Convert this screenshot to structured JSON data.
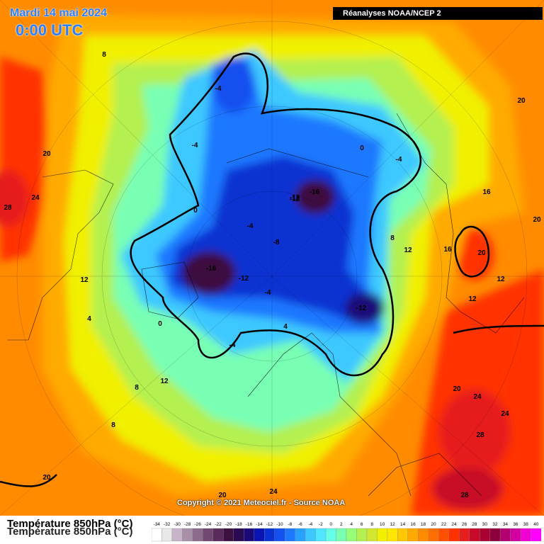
{
  "header": {
    "date": "Mardi 14 mai 2024",
    "time": "0:00 UTC",
    "source": "Réanalyses NOAA/NCEP 2"
  },
  "footer": {
    "copyright": "Copyright © 2021 Meteociel.fr - Source NOAA"
  },
  "legend": {
    "title": "Température 850hPa (°C)",
    "ticks": [
      "-34",
      "-32",
      "-30",
      "-28",
      "-26",
      "-24",
      "-22",
      "-20",
      "-18",
      "-16",
      "-14",
      "-12",
      "-10",
      "-8",
      "-6",
      "-4",
      "-2",
      "0",
      "2",
      "4",
      "6",
      "8",
      "10",
      "12",
      "14",
      "16",
      "18",
      "20",
      "22",
      "24",
      "26",
      "28",
      "30",
      "32",
      "34",
      "36",
      "38",
      "40"
    ],
    "colors": [
      "#ffffff",
      "#e8e8e8",
      "#c8b4c8",
      "#a890a8",
      "#8c6c8c",
      "#704870",
      "#5a2a5a",
      "#3c1040",
      "#2a0a50",
      "#1a0a78",
      "#0a14b4",
      "#0a32d2",
      "#1450f0",
      "#1e78ff",
      "#28a0ff",
      "#3cc8ff",
      "#50e6ff",
      "#64ffe6",
      "#78ffb4",
      "#96ff78",
      "#b4f050",
      "#d2e632",
      "#f0f000",
      "#ffe600",
      "#ffc800",
      "#ffaa00",
      "#ff8c00",
      "#ff6e00",
      "#ff5000",
      "#ff3200",
      "#e61e1e",
      "#c80a28",
      "#aa0032",
      "#8c003c",
      "#b4006e",
      "#d200a0",
      "#f000d2",
      "#ff00ff"
    ]
  },
  "map_labels": [
    {
      "text": "8"
    },
    {
      "text": "-4"
    },
    {
      "text": "-4"
    },
    {
      "text": "20"
    },
    {
      "text": "24"
    },
    {
      "text": "28"
    },
    {
      "text": "0"
    },
    {
      "text": "-4"
    },
    {
      "text": "-8"
    },
    {
      "text": "-12"
    },
    {
      "text": "-16"
    },
    {
      "text": "-12"
    },
    {
      "text": "-16"
    },
    {
      "text": "-12"
    },
    {
      "text": "-4"
    },
    {
      "text": "12"
    },
    {
      "text": "4"
    },
    {
      "text": "0"
    },
    {
      "text": "4"
    },
    {
      "text": "-4"
    },
    {
      "text": "-12"
    },
    {
      "text": "0"
    },
    {
      "text": "-4"
    },
    {
      "text": "16"
    },
    {
      "text": "20"
    },
    {
      "text": "8"
    },
    {
      "text": "12"
    },
    {
      "text": "16"
    },
    {
      "text": "20"
    },
    {
      "text": "12"
    },
    {
      "text": "12"
    },
    {
      "text": "20"
    },
    {
      "text": "24"
    },
    {
      "text": "24"
    },
    {
      "text": "28"
    },
    {
      "text": "28"
    },
    {
      "text": "20"
    },
    {
      "text": "12"
    },
    {
      "text": "8"
    },
    {
      "text": "8"
    },
    {
      "text": "20"
    },
    {
      "text": "24"
    },
    {
      "text": "20"
    }
  ]
}
